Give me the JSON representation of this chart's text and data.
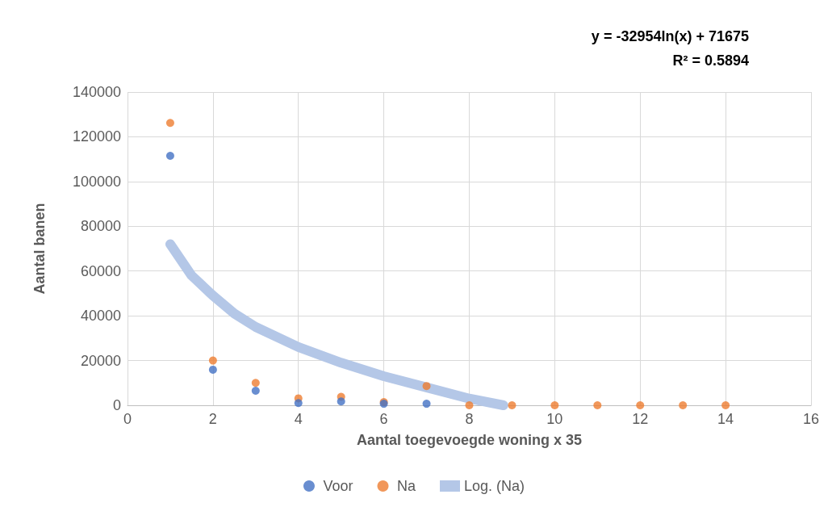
{
  "chart_data": {
    "type": "scatter",
    "xlabel": "Aantal toegevoegde woning x 35",
    "ylabel": "Aantal banen",
    "annotations": [
      "y = -32954ln(x) + 71675",
      "R² = 0.5894"
    ],
    "x": [
      1,
      2,
      3,
      4,
      5,
      6,
      7,
      8,
      9,
      10,
      11,
      12,
      13,
      14
    ],
    "series": [
      {
        "name": "Voor",
        "color": "#4472c4",
        "marker": "circle",
        "values": [
          111500,
          15900,
          6500,
          1000,
          1700,
          700,
          700,
          null,
          null,
          null,
          null,
          null,
          null,
          null
        ]
      },
      {
        "name": "Na",
        "color": "#ed7d31",
        "marker": "circle",
        "values": [
          126200,
          20000,
          10000,
          3100,
          3800,
          1400,
          8600,
          0,
          0,
          0,
          0,
          0,
          0,
          0
        ]
      },
      {
        "name": "Log. (Na)",
        "type": "line",
        "color": "#b4c7e7",
        "marker": "none",
        "line_style": "solid",
        "x": [
          1,
          1.5,
          2,
          2.5,
          3,
          4,
          5,
          6,
          7,
          8,
          8.8
        ],
        "values": [
          72000,
          58000,
          49000,
          41000,
          35000,
          26000,
          19000,
          13000,
          8000,
          3000,
          0
        ]
      }
    ],
    "xlim": [
      0,
      16
    ],
    "xticks": [
      0,
      2,
      4,
      6,
      8,
      10,
      12,
      14,
      16
    ],
    "ylim": [
      0,
      140000
    ],
    "yticks": [
      0,
      20000,
      40000,
      60000,
      80000,
      100000,
      120000,
      140000
    ],
    "grid": true,
    "legend": "bottom"
  }
}
